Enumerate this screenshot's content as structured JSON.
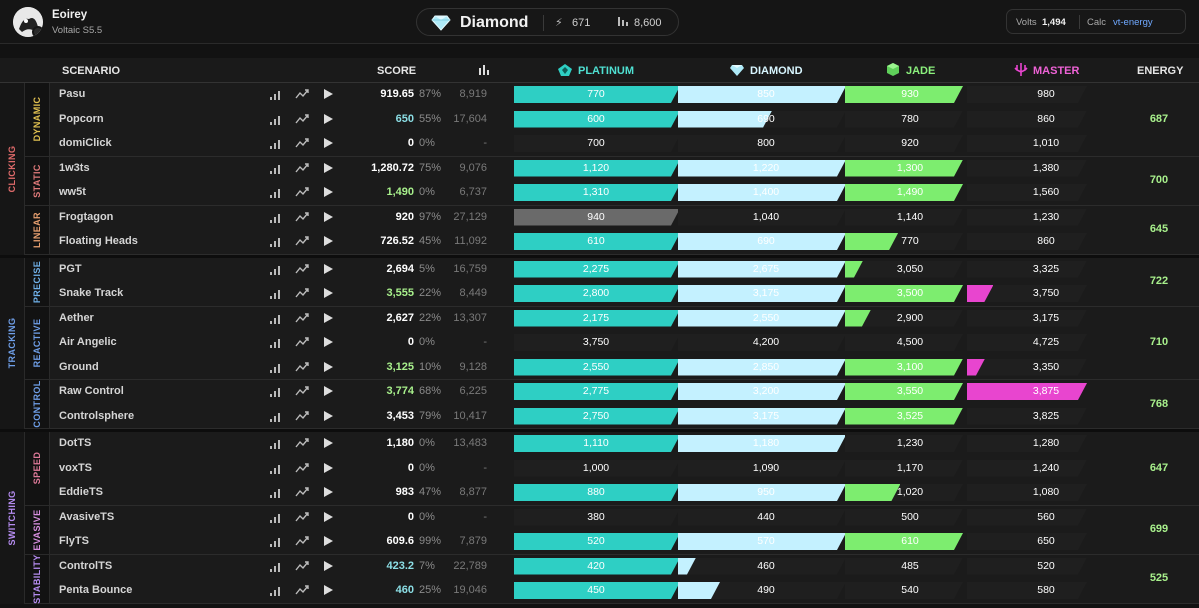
{
  "header": {
    "username": "Eoirey",
    "season": "Voltaic S5.5",
    "rank": {
      "name": "Diamond",
      "volts": "671",
      "energy": "8,600"
    },
    "volts_label": "Volts",
    "volts_value": "1,494",
    "calc_label": "Calc",
    "calc_value": "vt-energy"
  },
  "columns": {
    "scenario": "SCENARIO",
    "score": "SCORE",
    "platinum": "PLATINUM",
    "diamond": "DIAMOND",
    "jade": "JADE",
    "master": "MASTER",
    "energy": "ENERGY"
  },
  "colors": {
    "platinum": "#2ecfc4",
    "diamond": "#c4f1ff",
    "jade": "#7ded6f",
    "master": "#e845cf",
    "clicking": "#e06b6b",
    "tracking": "#6f9fe8",
    "switching": "#b58cf0",
    "energy": "#a8f08c"
  },
  "categories": [
    {
      "name": "CLICKING",
      "color": "#e06b6b",
      "subs": [
        {
          "name": "DYNAMIC",
          "color": "#e0c050",
          "energy": "687",
          "scenarios": [
            {
              "name": "Pasu",
              "score": "919.65",
              "score_color": "#ffffff",
              "pct": "87%",
              "lb": "8,919",
              "fill": 3,
              "frac": 0.0,
              "th": [
                "770",
                "850",
                "930",
                "980"
              ]
            },
            {
              "name": "Popcorn",
              "score": "650",
              "score_color": "#8cdfe6",
              "pct": "55%",
              "lb": "17,604",
              "fill": 1,
              "frac": 0.56,
              "th": [
                "600",
                "690",
                "780",
                "860"
              ]
            },
            {
              "name": "domiClick",
              "score": "0",
              "score_color": "#ffffff",
              "pct": "0%",
              "lb": "-",
              "fill": 0,
              "frac": 0.0,
              "th": [
                "700",
                "800",
                "920",
                "1,010"
              ]
            }
          ]
        },
        {
          "name": "STATIC",
          "color": "#e07a7a",
          "energy": "700",
          "scenarios": [
            {
              "name": "1w3ts",
              "score": "1,280.72",
              "score_color": "#ffffff",
              "pct": "75%",
              "lb": "9,076",
              "fill": 3,
              "frac": 0.0,
              "th": [
                "1,120",
                "1,220",
                "1,300",
                "1,380"
              ]
            },
            {
              "name": "ww5t",
              "score": "1,490",
              "score_color": "#a8f08c",
              "pct": "0%",
              "lb": "6,737",
              "fill": 3,
              "frac": 0.0,
              "th": [
                "1,310",
                "1,400",
                "1,490",
                "1,560"
              ]
            }
          ]
        },
        {
          "name": "LINEAR",
          "color": "#e8a070",
          "energy": "645",
          "scenarios": [
            {
              "name": "Frogtagon",
              "score": "920",
              "score_color": "#ffffff",
              "pct": "97%",
              "lb": "27,129",
              "fill": -1,
              "frac": 0.0,
              "th": [
                "940",
                "1,040",
                "1,140",
                "1,230"
              ]
            },
            {
              "name": "Floating Heads",
              "score": "726.52",
              "score_color": "#ffffff",
              "pct": "45%",
              "lb": "11,092",
              "fill": 2,
              "frac": 0.45,
              "th": [
                "610",
                "690",
                "770",
                "860"
              ]
            }
          ]
        }
      ]
    },
    {
      "name": "TRACKING",
      "color": "#6f9fe8",
      "subs": [
        {
          "name": "PRECISE",
          "color": "#6fb0e8",
          "energy": "722",
          "scenarios": [
            {
              "name": "PGT",
              "score": "2,694",
              "score_color": "#ffffff",
              "pct": "5%",
              "lb": "16,759",
              "fill": 2,
              "frac": 0.05,
              "th": [
                "2,275",
                "2,675",
                "3,050",
                "3,325"
              ]
            },
            {
              "name": "Snake Track",
              "score": "3,555",
              "score_color": "#a8f08c",
              "pct": "22%",
              "lb": "8,449",
              "fill": 3,
              "frac": 0.22,
              "th": [
                "2,800",
                "3,175",
                "3,500",
                "3,750"
              ]
            }
          ]
        },
        {
          "name": "REACTIVE",
          "color": "#6f9fe8",
          "energy": "710",
          "scenarios": [
            {
              "name": "Aether",
              "score": "2,627",
              "score_color": "#ffffff",
              "pct": "22%",
              "lb": "13,307",
              "fill": 2,
              "frac": 0.22,
              "th": [
                "2,175",
                "2,550",
                "2,900",
                "3,175"
              ]
            },
            {
              "name": "Air Angelic",
              "score": "0",
              "score_color": "#ffffff",
              "pct": "0%",
              "lb": "-",
              "fill": 0,
              "frac": 0.0,
              "th": [
                "3,750",
                "4,200",
                "4,500",
                "4,725"
              ]
            },
            {
              "name": "Ground",
              "score": "3,125",
              "score_color": "#a8f08c",
              "pct": "10%",
              "lb": "9,128",
              "fill": 3,
              "frac": 0.1,
              "th": [
                "2,550",
                "2,850",
                "3,100",
                "3,350"
              ]
            }
          ]
        },
        {
          "name": "CONTROL",
          "color": "#6f9fe8",
          "energy": "768",
          "scenarios": [
            {
              "name": "Raw Control",
              "score": "3,774",
              "score_color": "#a8f08c",
              "pct": "68%",
              "lb": "6,225",
              "fill": 4,
              "frac": 0.0,
              "th": [
                "2,775",
                "3,200",
                "3,550",
                "3,875"
              ]
            },
            {
              "name": "Controlsphere",
              "score": "3,453",
              "score_color": "#ffffff",
              "pct": "79%",
              "lb": "10,417",
              "fill": 3,
              "frac": 0.0,
              "th": [
                "2,750",
                "3,175",
                "3,525",
                "3,825"
              ]
            }
          ]
        }
      ]
    },
    {
      "name": "SWITCHING",
      "color": "#b58cf0",
      "subs": [
        {
          "name": "SPEED",
          "color": "#e07a9a",
          "energy": "647",
          "scenarios": [
            {
              "name": "DotTS",
              "score": "1,180",
              "score_color": "#ffffff",
              "pct": "0%",
              "lb": "13,483",
              "fill": 2,
              "frac": 0.0,
              "th": [
                "1,110",
                "1,180",
                "1,230",
                "1,280"
              ]
            },
            {
              "name": "voxTS",
              "score": "0",
              "score_color": "#ffffff",
              "pct": "0%",
              "lb": "-",
              "fill": 0,
              "frac": 0.0,
              "th": [
                "1,000",
                "1,090",
                "1,170",
                "1,240"
              ]
            },
            {
              "name": "EddieTS",
              "score": "983",
              "score_color": "#ffffff",
              "pct": "47%",
              "lb": "8,877",
              "fill": 2,
              "frac": 0.47,
              "th": [
                "880",
                "950",
                "1,020",
                "1,080"
              ]
            }
          ]
        },
        {
          "name": "EVASIVE",
          "color": "#d88fe0",
          "energy": "699",
          "scenarios": [
            {
              "name": "AvasiveTS",
              "score": "0",
              "score_color": "#ffffff",
              "pct": "0%",
              "lb": "-",
              "fill": 0,
              "frac": 0.0,
              "th": [
                "380",
                "440",
                "500",
                "560"
              ]
            },
            {
              "name": "FlyTS",
              "score": "609.6",
              "score_color": "#ffffff",
              "pct": "99%",
              "lb": "7,879",
              "fill": 3,
              "frac": 0.0,
              "th": [
                "520",
                "570",
                "610",
                "650"
              ]
            }
          ]
        },
        {
          "name": "STABILITY",
          "color": "#b58cf0",
          "energy": "525",
          "scenarios": [
            {
              "name": "ControlTS",
              "score": "423.2",
              "score_color": "#8cdfe6",
              "pct": "7%",
              "lb": "22,789",
              "fill": 1,
              "frac": 0.07,
              "th": [
                "420",
                "460",
                "485",
                "520"
              ]
            },
            {
              "name": "Penta Bounce",
              "score": "460",
              "score_color": "#8cdfe6",
              "pct": "25%",
              "lb": "19,046",
              "fill": 1,
              "frac": 0.25,
              "th": [
                "450",
                "490",
                "540",
                "580"
              ]
            }
          ]
        }
      ]
    }
  ]
}
